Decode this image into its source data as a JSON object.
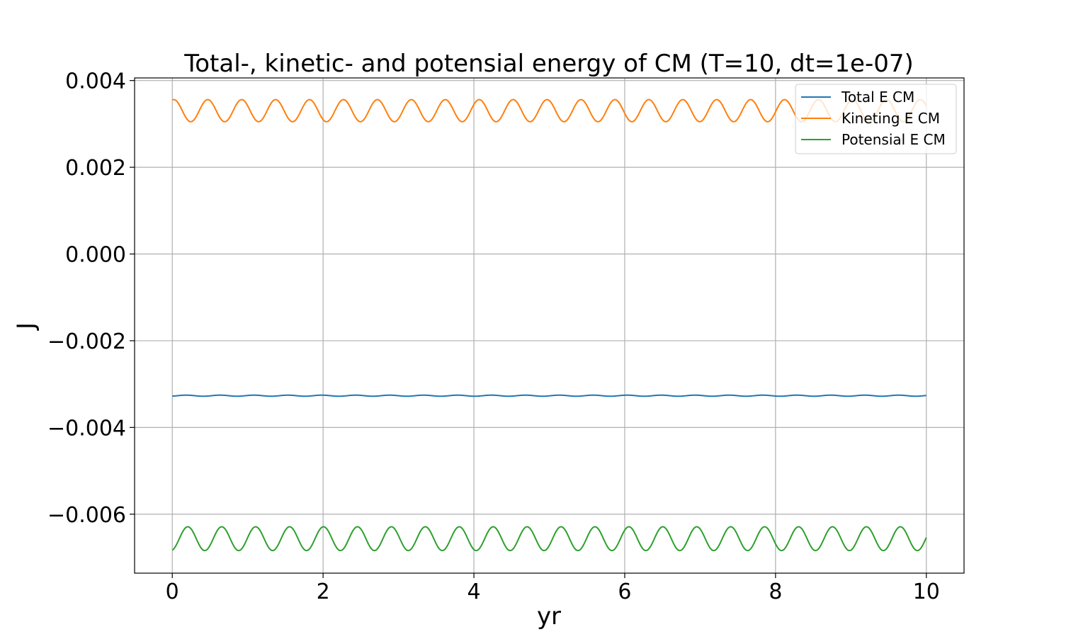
{
  "chart_data": {
    "type": "line",
    "title": "Total-, kinetic- and potensial energy of CM (T=10, dt=1e-07)",
    "xlabel": "yr",
    "ylabel": "J",
    "xlim": [
      -0.5,
      10.5
    ],
    "ylim": [
      -0.00736,
      0.00406
    ],
    "xticks": [
      0,
      2,
      4,
      6,
      8,
      10
    ],
    "xtick_labels": [
      "0",
      "2",
      "4",
      "6",
      "8",
      "10"
    ],
    "yticks": [
      0.004,
      0.002,
      0.0,
      -0.002,
      -0.004,
      -0.006
    ],
    "ytick_labels": [
      "0.004",
      "0.002",
      "0.000",
      "−0.002",
      "−0.004",
      "−0.006"
    ],
    "grid": true,
    "legend_position": "top-right",
    "series": [
      {
        "name": "Total E CM",
        "color": "#1f77b4",
        "x": [
          0,
          0.5,
          1,
          1.5,
          2,
          2.5,
          3,
          3.5,
          4,
          4.5,
          5,
          5.5,
          6,
          6.5,
          7,
          7.5,
          8,
          8.5,
          9,
          9.5,
          10
        ],
        "values": [
          -0.003278,
          -0.003272,
          -0.003268,
          -0.003272,
          -0.003278,
          -0.003272,
          -0.003268,
          -0.003272,
          -0.003278,
          -0.003272,
          -0.003268,
          -0.003272,
          -0.003278,
          -0.003272,
          -0.003268,
          -0.003272,
          -0.003278,
          -0.003272,
          -0.003268,
          -0.003272,
          -0.003274
        ],
        "oscillation": {
          "period": 0.45,
          "min": -0.00328,
          "max": -0.003255
        }
      },
      {
        "name": "Kineting E CM",
        "color": "#ff7f0e",
        "x": [
          0,
          0.5,
          1,
          1.5,
          2,
          2.5,
          3,
          3.5,
          4,
          4.5,
          5,
          5.5,
          6,
          6.5,
          7,
          7.5,
          8,
          8.5,
          9,
          9.5,
          10
        ],
        "values": [
          0.00355,
          0.0034,
          0.0031,
          0.00348,
          0.00308,
          0.00344,
          0.00312,
          0.00352,
          0.00306,
          0.0034,
          0.0031,
          0.00348,
          0.00308,
          0.00344,
          0.00312,
          0.00352,
          0.00306,
          0.0034,
          0.0031,
          0.00348,
          0.0034
        ],
        "oscillation": {
          "period": 0.45,
          "min": 0.00305,
          "max": 0.00356,
          "start": 0.00355
        }
      },
      {
        "name": "Potensial E CM",
        "color": "#2ca02c",
        "x": [
          0,
          0.5,
          1,
          1.5,
          2,
          2.5,
          3,
          3.5,
          4,
          4.5,
          5,
          5.5,
          6,
          6.5,
          7,
          7.5,
          8,
          8.5,
          9,
          9.5,
          10
        ],
        "values": [
          -0.00683,
          -0.00668,
          -0.00639,
          -0.00676,
          -0.00636,
          -0.00672,
          -0.0064,
          -0.0068,
          -0.00634,
          -0.00668,
          -0.00639,
          -0.00676,
          -0.00636,
          -0.00672,
          -0.0064,
          -0.0068,
          -0.00634,
          -0.00668,
          -0.00639,
          -0.00676,
          -0.00635
        ],
        "oscillation": {
          "period": 0.45,
          "min": -0.00684,
          "max": -0.00629,
          "start": -0.00683
        }
      }
    ]
  }
}
